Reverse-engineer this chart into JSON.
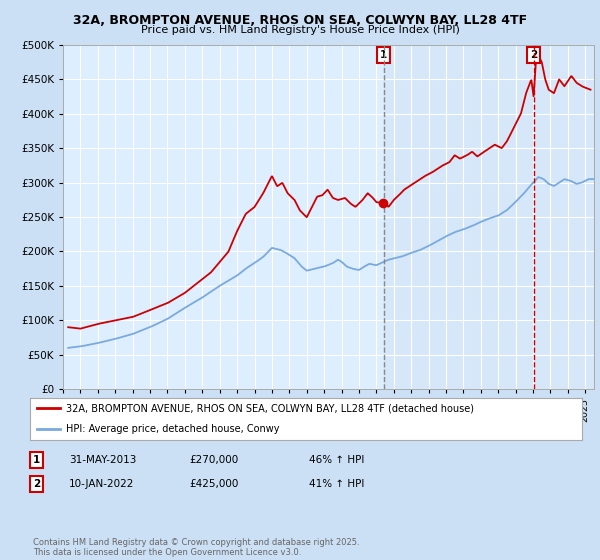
{
  "title_line1": "32A, BROMPTON AVENUE, RHOS ON SEA, COLWYN BAY, LL28 4TF",
  "title_line2": "Price paid vs. HM Land Registry's House Price Index (HPI)",
  "bg_color": "#cce0f5",
  "plot_bg_color": "#ddeeff",
  "red_color": "#cc0000",
  "blue_color": "#7aaadd",
  "marker1_x": 2013.42,
  "marker2_x": 2022.03,
  "legend_entry1": "32A, BROMPTON AVENUE, RHOS ON SEA, COLWYN BAY, LL28 4TF (detached house)",
  "legend_entry2": "HPI: Average price, detached house, Conwy",
  "footer": "Contains HM Land Registry data © Crown copyright and database right 2025.\nThis data is licensed under the Open Government Licence v3.0.",
  "ylim": [
    0,
    500000
  ],
  "yticks": [
    0,
    50000,
    100000,
    150000,
    200000,
    250000,
    300000,
    350000,
    400000,
    450000,
    500000
  ],
  "xlim_start": 1995.3,
  "xlim_end": 2025.5,
  "shade_color": "#c8dcf0"
}
